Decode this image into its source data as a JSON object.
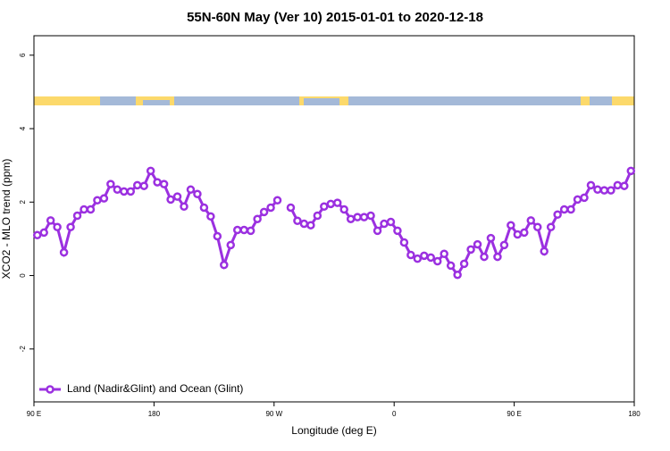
{
  "chart_data": {
    "type": "line",
    "title": "55N-60N May (Ver 10)   2015-01-01 to 2020-12-18",
    "x_label": "Longitude (deg E)",
    "y_label": "XCO2 - MLO trend (ppm)",
    "x": [
      92.5,
      97.5,
      102.5,
      107.5,
      112.5,
      117.5,
      122.5,
      127.5,
      132.5,
      137.5,
      142.5,
      147.5,
      152.5,
      157.5,
      162.5,
      167.5,
      172.5,
      177.5,
      182.5,
      187.5,
      192.5,
      197.5,
      202.5,
      207.5,
      212.5,
      217.5,
      222.5,
      227.5,
      232.5,
      237.5,
      242.5,
      247.5,
      252.5,
      257.5,
      262.5,
      267.5,
      272.5,
      277.5,
      282.5,
      287.5,
      292.5,
      297.5,
      302.5,
      307.5,
      312.5,
      317.5,
      322.5,
      327.5,
      332.5,
      337.5,
      342.5,
      347.5,
      352.5,
      357.5,
      362.5,
      367.5,
      372.5,
      377.5,
      382.5,
      387.5,
      392.5,
      397.5,
      402.5,
      407.5,
      412.5,
      417.5,
      422.5,
      427.5,
      432.5,
      437.5,
      442.5,
      447.5,
      452.5,
      457.5,
      462.5,
      467.5,
      472.5,
      477.5,
      482.5,
      487.5,
      492.5,
      497.5,
      502.5,
      507.5,
      512.5,
      517.5,
      522.5,
      527.5,
      532.5,
      537.5
    ],
    "series": [
      {
        "name": "Land (Nadir&Glint) and Ocean (Glint)",
        "color": "#9b30e0",
        "values": [
          1.1,
          1.17,
          1.5,
          1.32,
          0.63,
          1.32,
          1.63,
          1.8,
          1.8,
          2.05,
          2.1,
          2.49,
          2.34,
          2.29,
          2.29,
          2.46,
          2.44,
          2.85,
          2.54,
          2.49,
          2.07,
          2.15,
          1.88,
          2.34,
          2.22,
          1.85,
          1.61,
          1.07,
          0.29,
          0.83,
          1.24,
          1.24,
          1.22,
          1.54,
          1.73,
          1.85,
          2.05,
          null,
          1.85,
          1.49,
          1.41,
          1.37,
          1.63,
          1.88,
          1.95,
          1.98,
          1.8,
          1.54,
          1.59,
          1.59,
          1.63,
          1.22,
          1.41,
          1.46,
          1.22,
          0.9,
          0.56,
          0.46,
          0.54,
          0.49,
          0.39,
          0.59,
          0.27,
          0.02,
          0.32,
          0.71,
          0.85,
          0.51,
          1.02,
          0.51,
          0.83,
          1.37,
          1.12,
          1.17,
          1.5,
          1.32,
          0.66,
          1.32,
          1.66,
          1.8,
          1.8,
          2.07,
          2.12,
          2.46,
          2.34,
          2.32,
          2.32,
          2.46,
          2.44,
          2.85
        ]
      }
    ],
    "xlim": [
      90,
      540
    ],
    "xticks": [
      {
        "value": 90,
        "label": "90 E"
      },
      180,
      {
        "value": 270,
        "label": "90 W"
      },
      {
        "value": 360,
        "label": "0"
      },
      {
        "value": 450,
        "label": "90 E"
      },
      {
        "value": 540,
        "label": "180"
      }
    ],
    "ylim": [
      -3.44,
      6.53
    ],
    "yticks": [
      -2,
      0,
      2,
      4,
      6
    ],
    "legend": "bottom-left"
  }
}
